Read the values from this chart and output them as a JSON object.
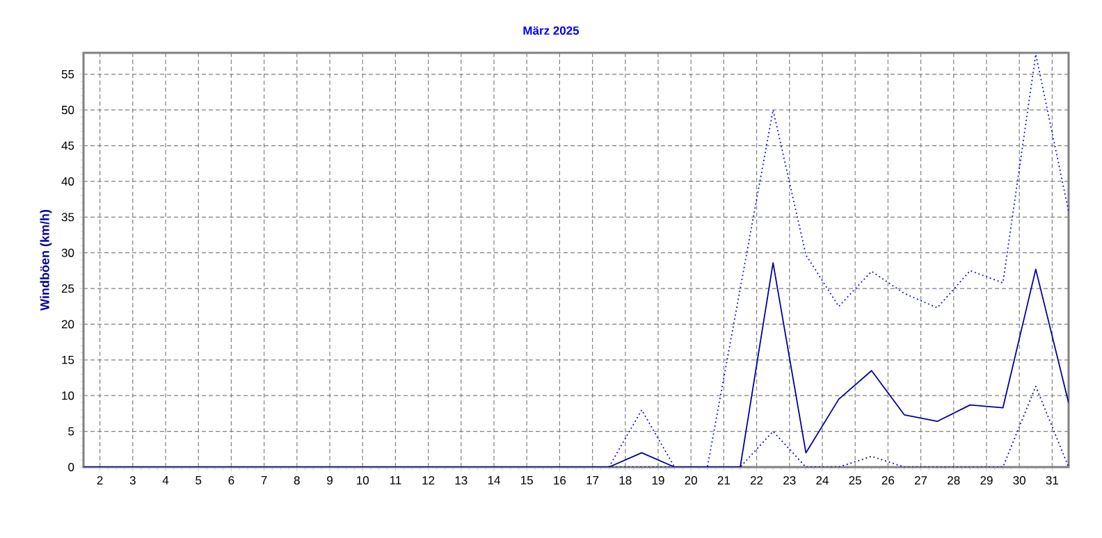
{
  "chart_data": {
    "type": "line",
    "title": "März 2025",
    "ylabel": "Windböen (km/h)",
    "x": [
      1.5,
      2.5,
      3.5,
      4.5,
      5.5,
      6.5,
      7.5,
      8.5,
      9.5,
      10.5,
      11.5,
      12.5,
      13.5,
      14.5,
      15.5,
      16.5,
      17.5,
      18.5,
      19.5,
      20.5,
      21.5,
      22.5,
      23.5,
      24.5,
      25.5,
      26.5,
      27.5,
      28.5,
      29.5,
      30.5,
      31.5
    ],
    "series": [
      {
        "color": "#0000ff",
        "line_style": "dotted",
        "values": [
          null,
          null,
          null,
          null,
          null,
          null,
          null,
          null,
          null,
          null,
          null,
          null,
          null,
          null,
          null,
          null,
          0,
          8,
          0,
          0,
          25,
          50,
          29.7,
          22.5,
          27.4,
          24.3,
          22.3,
          27.5,
          25.8,
          57.8,
          35.8
        ]
      },
      {
        "color": "#0000a0",
        "line_style": "solid",
        "values": [
          0,
          0,
          0,
          0,
          0,
          0,
          0,
          0,
          0,
          0,
          0,
          0,
          0,
          0,
          0,
          0,
          0,
          2,
          0,
          0,
          0,
          28.6,
          2,
          9.5,
          13.5,
          7.3,
          6.4,
          8.7,
          8.3,
          27.7,
          9
        ]
      },
      {
        "color": "#0000a0",
        "line_style": "dotted",
        "values": [
          0,
          0,
          0,
          0,
          0,
          0,
          0,
          0,
          0,
          0,
          0,
          0,
          0,
          0,
          0,
          0,
          0,
          0,
          0,
          0,
          0,
          5,
          0,
          0,
          1.5,
          0,
          0,
          0,
          0,
          11.3,
          0
        ]
      }
    ],
    "xlim": [
      1.5,
      31.5
    ],
    "ylim": [
      0,
      58
    ],
    "xticks": [
      2,
      3,
      4,
      5,
      6,
      7,
      8,
      9,
      10,
      11,
      12,
      13,
      14,
      15,
      16,
      17,
      18,
      19,
      20,
      21,
      22,
      23,
      24,
      25,
      26,
      27,
      28,
      29,
      30,
      31
    ],
    "yticks": [
      0,
      5,
      10,
      15,
      20,
      25,
      30,
      35,
      40,
      45,
      50,
      55
    ],
    "grid": true,
    "marker": "none"
  }
}
